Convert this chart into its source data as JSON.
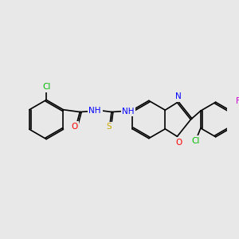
{
  "bg_color": "#e8e8e8",
  "bond_color": "#000000",
  "atom_colors": {
    "Cl_left": "#00bb00",
    "Cl_right": "#00bb00",
    "F": "#cc00cc",
    "O": "#ff0000",
    "N": "#0000ff",
    "S": "#ccaa00"
  },
  "figsize": [
    3.0,
    3.0
  ],
  "dpi": 100
}
